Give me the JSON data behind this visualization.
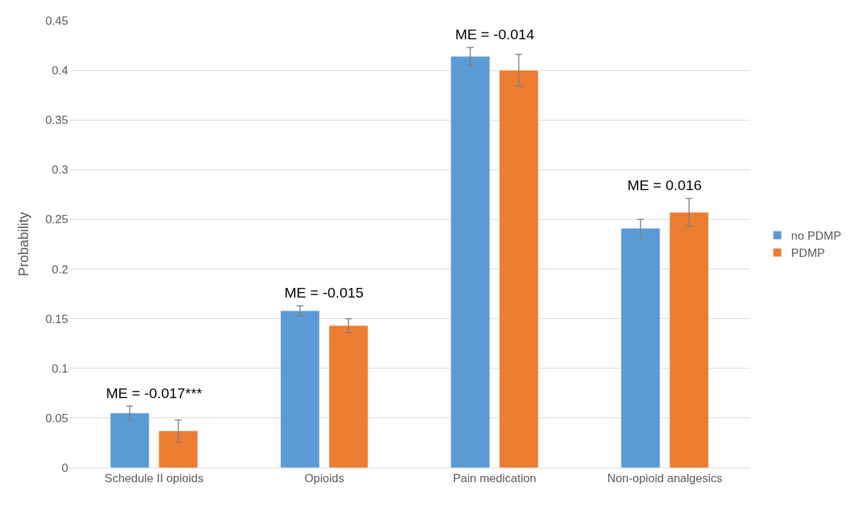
{
  "chart_data": {
    "type": "bar",
    "ylabel": "Probability",
    "categories": [
      "Schedule II opioids",
      "Opioids",
      "Pain medication",
      "Non-opioid analgesics"
    ],
    "series": [
      {
        "name": "no PDMP",
        "color": "#5b9bd5",
        "values": [
          0.055,
          0.158,
          0.414,
          0.241
        ],
        "errors": [
          0.007,
          0.005,
          0.009,
          0.009
        ]
      },
      {
        "name": "PDMP",
        "color": "#ed7d31",
        "values": [
          0.037,
          0.143,
          0.4,
          0.257
        ],
        "errors": [
          0.011,
          0.007,
          0.016,
          0.014
        ]
      }
    ],
    "ylim": [
      0,
      0.45
    ],
    "yticks": [
      0,
      0.05,
      0.1,
      0.15,
      0.2,
      0.25,
      0.3,
      0.35,
      0.4,
      0.45
    ],
    "grid": "y",
    "legend": "right",
    "annotations": [
      "ME = -0.017***",
      "ME = -0.015",
      "ME = -0.014",
      "ME = 0.016"
    ]
  }
}
